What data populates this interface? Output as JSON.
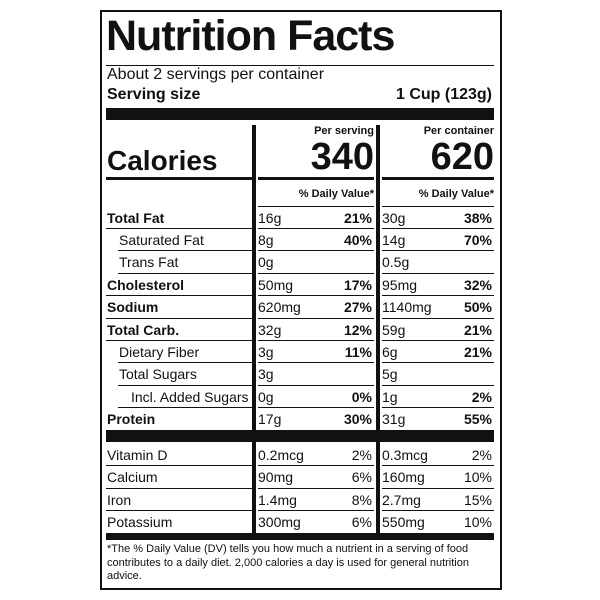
{
  "header": {
    "title": "Nutrition Facts",
    "servings": "About 2 servings per container",
    "serving_size_label": "Serving size",
    "serving_size_value": "1 Cup (123g)"
  },
  "columns": [
    "Per serving",
    "Per container"
  ],
  "calories": {
    "label": "Calories",
    "values": [
      "340",
      "620"
    ]
  },
  "dv_header": [
    "% Daily Value*",
    "% Daily Value*"
  ],
  "nutrients": [
    {
      "name": "Total Fat",
      "bold": true,
      "indent": 0,
      "serving": {
        "amount": "16g",
        "dv": "21%"
      },
      "container": {
        "amount": "30g",
        "dv": "38%"
      }
    },
    {
      "name": "Saturated Fat",
      "bold": false,
      "indent": 1,
      "serving": {
        "amount": "8g",
        "dv": "40%"
      },
      "container": {
        "amount": "14g",
        "dv": "70%"
      }
    },
    {
      "name": "Trans Fat",
      "bold": false,
      "indent": 1,
      "serving": {
        "amount": "0g"
      },
      "container": {
        "amount": "0.5g"
      }
    },
    {
      "name": "Cholesterol",
      "bold": true,
      "indent": 0,
      "serving": {
        "amount": "50mg",
        "dv": "17%"
      },
      "container": {
        "amount": "95mg",
        "dv": "32%"
      }
    },
    {
      "name": "Sodium",
      "bold": true,
      "indent": 0,
      "serving": {
        "amount": "620mg",
        "dv": "27%"
      },
      "container": {
        "amount": "1140mg",
        "dv": "50%"
      }
    },
    {
      "name": "Total Carb.",
      "bold": true,
      "indent": 0,
      "serving": {
        "amount": "32g",
        "dv": "12%"
      },
      "container": {
        "amount": "59g",
        "dv": "21%"
      }
    },
    {
      "name": "Dietary Fiber",
      "bold": false,
      "indent": 1,
      "serving": {
        "amount": "3g",
        "dv": "11%"
      },
      "container": {
        "amount": "6g",
        "dv": "21%"
      }
    },
    {
      "name": "Total Sugars",
      "bold": false,
      "indent": 1,
      "serving": {
        "amount": "3g"
      },
      "container": {
        "amount": "5g"
      }
    },
    {
      "name": "Incl. Added Sugars",
      "bold": false,
      "indent": 2,
      "serving": {
        "amount": "0g",
        "dv": "0%"
      },
      "container": {
        "amount": "1g",
        "dv": "2%"
      }
    },
    {
      "name": "Protein",
      "bold": true,
      "indent": 0,
      "serving": {
        "amount": "17g",
        "dv": "30%"
      },
      "container": {
        "amount": "31g",
        "dv": "55%"
      }
    }
  ],
  "vitamins": [
    {
      "name": "Vitamin D",
      "serving": {
        "amount": "0.2mcg",
        "dv": "2%"
      },
      "container": {
        "amount": "0.3mcg",
        "dv": "2%"
      }
    },
    {
      "name": "Calcium",
      "serving": {
        "amount": "90mg",
        "dv": "6%"
      },
      "container": {
        "amount": "160mg",
        "dv": "10%"
      }
    },
    {
      "name": "Iron",
      "serving": {
        "amount": "1.4mg",
        "dv": "8%"
      },
      "container": {
        "amount": "2.7mg",
        "dv": "15%"
      }
    },
    {
      "name": "Potassium",
      "serving": {
        "amount": "300mg",
        "dv": "6%"
      },
      "container": {
        "amount": "550mg",
        "dv": "10%"
      }
    }
  ],
  "footnote": "*The % Daily Value (DV) tells you how much a nutrient in a serving of food contributes to a daily diet. 2,000 calories a day is used for general nutrition advice."
}
